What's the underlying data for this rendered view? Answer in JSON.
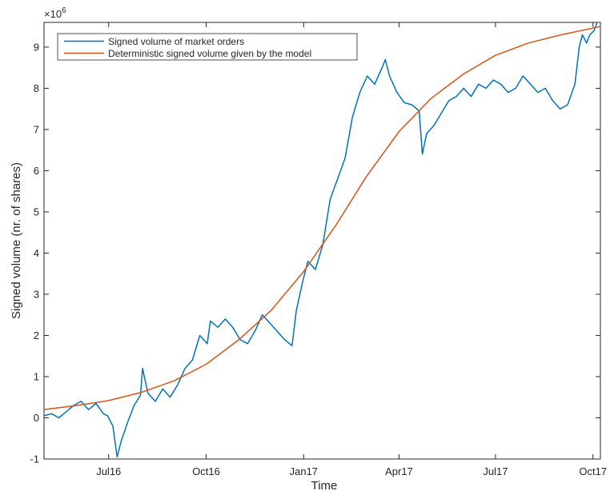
{
  "chart_data": {
    "type": "line",
    "title": "",
    "xlabel": "Time",
    "ylabel": "Signed volume (nr. of shares)",
    "y_multiplier_base": "×10",
    "y_multiplier_exponent": "6",
    "x_axis_dates": true,
    "xlim": [
      "2016-05-01",
      "2017-10-08"
    ],
    "ylim": [
      -1,
      9.6
    ],
    "x_ticks": [
      {
        "date": "2016-07-01",
        "label": "Jul16"
      },
      {
        "date": "2016-10-01",
        "label": "Oct16"
      },
      {
        "date": "2017-01-01",
        "label": "Jan17"
      },
      {
        "date": "2017-04-01",
        "label": "Apr17"
      },
      {
        "date": "2017-07-01",
        "label": "Jul17"
      },
      {
        "date": "2017-10-01",
        "label": "Oct17"
      }
    ],
    "y_ticks": [
      -1,
      0,
      1,
      2,
      3,
      4,
      5,
      6,
      7,
      8,
      9
    ],
    "grid": false,
    "legend_position": "top-left",
    "series": [
      {
        "name": "Signed volume of market orders",
        "color": "#0072bd",
        "points": [
          [
            "2016-05-01",
            0.05
          ],
          [
            "2016-05-08",
            0.1
          ],
          [
            "2016-05-15",
            0.0
          ],
          [
            "2016-05-22",
            0.15
          ],
          [
            "2016-05-29",
            0.3
          ],
          [
            "2016-06-05",
            0.4
          ],
          [
            "2016-06-12",
            0.2
          ],
          [
            "2016-06-19",
            0.35
          ],
          [
            "2016-06-26",
            0.1
          ],
          [
            "2016-06-30",
            0.05
          ],
          [
            "2016-07-05",
            -0.2
          ],
          [
            "2016-07-09",
            -0.95
          ],
          [
            "2016-07-13",
            -0.55
          ],
          [
            "2016-07-19",
            -0.1
          ],
          [
            "2016-07-25",
            0.3
          ],
          [
            "2016-07-31",
            0.55
          ],
          [
            "2016-08-02",
            1.2
          ],
          [
            "2016-08-07",
            0.6
          ],
          [
            "2016-08-14",
            0.4
          ],
          [
            "2016-08-21",
            0.7
          ],
          [
            "2016-08-28",
            0.5
          ],
          [
            "2016-09-04",
            0.8
          ],
          [
            "2016-09-11",
            1.2
          ],
          [
            "2016-09-18",
            1.4
          ],
          [
            "2016-09-25",
            2.0
          ],
          [
            "2016-10-02",
            1.8
          ],
          [
            "2016-10-05",
            2.35
          ],
          [
            "2016-10-12",
            2.2
          ],
          [
            "2016-10-19",
            2.4
          ],
          [
            "2016-10-26",
            2.2
          ],
          [
            "2016-11-02",
            1.9
          ],
          [
            "2016-11-09",
            1.8
          ],
          [
            "2016-11-16",
            2.1
          ],
          [
            "2016-11-23",
            2.5
          ],
          [
            "2016-11-30",
            2.3
          ],
          [
            "2016-12-07",
            2.1
          ],
          [
            "2016-12-14",
            1.9
          ],
          [
            "2016-12-21",
            1.75
          ],
          [
            "2016-12-25",
            2.6
          ],
          [
            "2016-12-31",
            3.3
          ],
          [
            "2017-01-05",
            3.8
          ],
          [
            "2017-01-12",
            3.6
          ],
          [
            "2017-01-19",
            4.2
          ],
          [
            "2017-01-26",
            5.3
          ],
          [
            "2017-02-02",
            5.8
          ],
          [
            "2017-02-09",
            6.3
          ],
          [
            "2017-02-16",
            7.3
          ],
          [
            "2017-02-23",
            7.9
          ],
          [
            "2017-03-02",
            8.3
          ],
          [
            "2017-03-09",
            8.1
          ],
          [
            "2017-03-16",
            8.5
          ],
          [
            "2017-03-19",
            8.7
          ],
          [
            "2017-03-23",
            8.3
          ],
          [
            "2017-03-30",
            7.9
          ],
          [
            "2017-04-06",
            7.65
          ],
          [
            "2017-04-13",
            7.6
          ],
          [
            "2017-04-20",
            7.45
          ],
          [
            "2017-04-23",
            6.4
          ],
          [
            "2017-04-27",
            6.9
          ],
          [
            "2017-05-04",
            7.1
          ],
          [
            "2017-05-11",
            7.4
          ],
          [
            "2017-05-18",
            7.7
          ],
          [
            "2017-05-25",
            7.8
          ],
          [
            "2017-06-01",
            8.0
          ],
          [
            "2017-06-08",
            7.8
          ],
          [
            "2017-06-15",
            8.1
          ],
          [
            "2017-06-22",
            8.0
          ],
          [
            "2017-06-29",
            8.2
          ],
          [
            "2017-07-06",
            8.1
          ],
          [
            "2017-07-13",
            7.9
          ],
          [
            "2017-07-20",
            8.0
          ],
          [
            "2017-07-27",
            8.3
          ],
          [
            "2017-08-03",
            8.1
          ],
          [
            "2017-08-10",
            7.9
          ],
          [
            "2017-08-17",
            8.0
          ],
          [
            "2017-08-24",
            7.7
          ],
          [
            "2017-08-31",
            7.5
          ],
          [
            "2017-09-07",
            7.6
          ],
          [
            "2017-09-14",
            8.1
          ],
          [
            "2017-09-18",
            9.0
          ],
          [
            "2017-09-21",
            9.3
          ],
          [
            "2017-09-25",
            9.1
          ],
          [
            "2017-09-28",
            9.3
          ],
          [
            "2017-10-02",
            9.4
          ],
          [
            "2017-10-05",
            9.6
          ]
        ]
      },
      {
        "name": "Deterministic signed volume given by the model",
        "color": "#d95319",
        "points": [
          [
            "2016-05-01",
            0.2
          ],
          [
            "2016-06-01",
            0.3
          ],
          [
            "2016-07-01",
            0.42
          ],
          [
            "2016-08-01",
            0.62
          ],
          [
            "2016-09-01",
            0.9
          ],
          [
            "2016-10-01",
            1.3
          ],
          [
            "2016-11-01",
            1.9
          ],
          [
            "2016-12-01",
            2.6
          ],
          [
            "2017-01-01",
            3.55
          ],
          [
            "2017-02-01",
            4.7
          ],
          [
            "2017-03-01",
            5.85
          ],
          [
            "2017-04-01",
            6.95
          ],
          [
            "2017-05-01",
            7.75
          ],
          [
            "2017-06-01",
            8.35
          ],
          [
            "2017-07-01",
            8.8
          ],
          [
            "2017-08-01",
            9.1
          ],
          [
            "2017-09-01",
            9.3
          ],
          [
            "2017-10-08",
            9.5
          ]
        ]
      }
    ]
  }
}
